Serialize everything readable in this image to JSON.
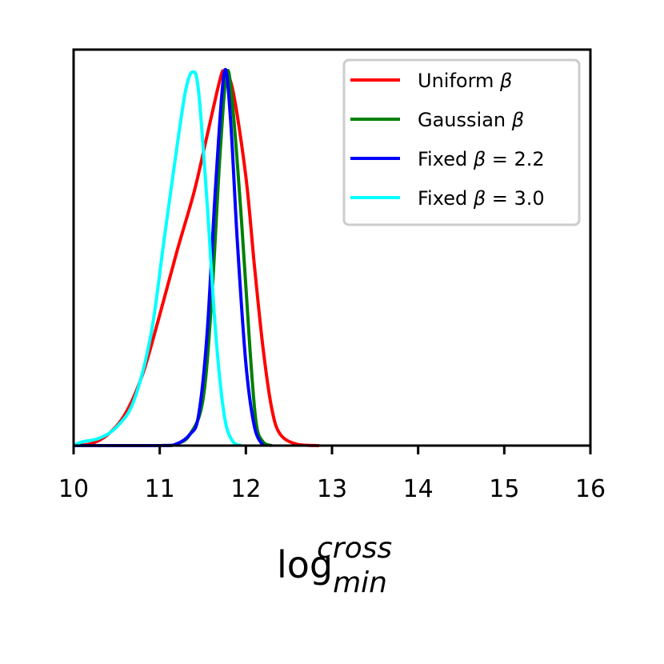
{
  "chart_data": {
    "type": "line",
    "title": "",
    "xlabel": {
      "base": "log",
      "superscript": "cross",
      "subscript": "min"
    },
    "ylabel": "",
    "xlim": [
      10,
      16
    ],
    "ylim": [
      0,
      1.06
    ],
    "xticks": [
      "10",
      "11",
      "12",
      "13",
      "14",
      "15",
      "16"
    ],
    "yticks_visible": false,
    "grid": false,
    "legend_position": "top-right",
    "series": [
      {
        "name": "Uniform β",
        "legend_parts": [
          "Uniform ",
          "β",
          ""
        ],
        "color": "#ff0000",
        "points": [
          [
            10.0,
            0.0
          ],
          [
            10.2,
            0.005
          ],
          [
            10.4,
            0.03
          ],
          [
            10.6,
            0.085
          ],
          [
            10.8,
            0.19
          ],
          [
            11.0,
            0.35
          ],
          [
            11.2,
            0.52
          ],
          [
            11.4,
            0.68
          ],
          [
            11.55,
            0.83
          ],
          [
            11.7,
            0.98
          ],
          [
            11.75,
            1.0
          ],
          [
            11.85,
            0.95
          ],
          [
            12.0,
            0.72
          ],
          [
            12.1,
            0.48
          ],
          [
            12.2,
            0.26
          ],
          [
            12.3,
            0.1
          ],
          [
            12.4,
            0.03
          ],
          [
            12.6,
            0.003
          ],
          [
            12.85,
            0.0
          ]
        ]
      },
      {
        "name": "Gaussian β",
        "legend_parts": [
          "Gaussian ",
          "β",
          ""
        ],
        "color": "#008000",
        "points": [
          [
            10.0,
            0.0
          ],
          [
            11.0,
            0.0
          ],
          [
            11.2,
            0.005
          ],
          [
            11.35,
            0.03
          ],
          [
            11.5,
            0.12
          ],
          [
            11.6,
            0.38
          ],
          [
            11.7,
            0.78
          ],
          [
            11.78,
            1.0
          ],
          [
            11.85,
            0.9
          ],
          [
            11.95,
            0.6
          ],
          [
            12.05,
            0.25
          ],
          [
            12.12,
            0.06
          ],
          [
            12.2,
            0.01
          ],
          [
            12.3,
            0.0
          ]
        ]
      },
      {
        "name": "Fixed β = 2.2",
        "legend_parts": [
          "Fixed ",
          "β",
          " = 2.2"
        ],
        "color": "#0000ff",
        "points": [
          [
            10.0,
            0.0
          ],
          [
            11.0,
            0.0
          ],
          [
            11.2,
            0.005
          ],
          [
            11.35,
            0.03
          ],
          [
            11.45,
            0.08
          ],
          [
            11.55,
            0.3
          ],
          [
            11.65,
            0.7
          ],
          [
            11.75,
            1.0
          ],
          [
            11.82,
            0.88
          ],
          [
            11.9,
            0.55
          ],
          [
            12.0,
            0.22
          ],
          [
            12.1,
            0.05
          ],
          [
            12.2,
            0.0
          ]
        ]
      },
      {
        "name": "Fixed β = 3.0",
        "legend_parts": [
          "Fixed ",
          "β",
          " = 3.0"
        ],
        "color": "#00ffff",
        "points": [
          [
            10.0,
            0.0
          ],
          [
            10.1,
            0.01
          ],
          [
            10.3,
            0.02
          ],
          [
            10.5,
            0.05
          ],
          [
            10.7,
            0.12
          ],
          [
            10.9,
            0.3
          ],
          [
            11.05,
            0.55
          ],
          [
            11.2,
            0.8
          ],
          [
            11.3,
            0.95
          ],
          [
            11.38,
            1.0
          ],
          [
            11.45,
            0.95
          ],
          [
            11.55,
            0.65
          ],
          [
            11.65,
            0.3
          ],
          [
            11.75,
            0.08
          ],
          [
            11.85,
            0.01
          ],
          [
            11.95,
            0.0
          ]
        ]
      }
    ]
  }
}
